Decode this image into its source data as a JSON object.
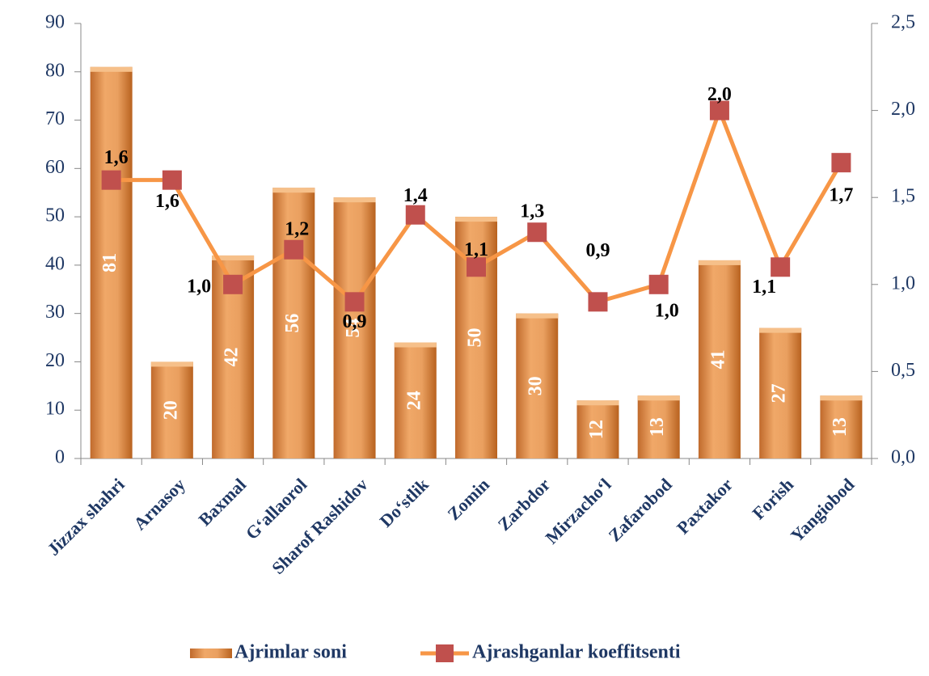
{
  "chart_data": {
    "type": "combo",
    "categories": [
      "Jizzax shahri",
      "Arnasoy",
      "Baxmal",
      "G‘allaorol",
      "Sharof Rashidov",
      "Do‘stlik",
      "Zomin",
      "Zarbdor",
      "Mirzacho‘l",
      "Zafarobod",
      "Paxtakor",
      "Forish",
      "Yangiobod"
    ],
    "series": [
      {
        "name": "Ajrimlar soni",
        "type": "bar",
        "color": "#e0904f",
        "values": [
          81,
          20,
          42,
          56,
          54,
          24,
          50,
          30,
          12,
          13,
          41,
          27,
          13
        ]
      },
      {
        "name": "Ajrashganlar koeffitsenti",
        "type": "line",
        "axis": "y2",
        "color": "#f79646",
        "marker_color": "#c0504d",
        "values": [
          1.6,
          1.6,
          1.0,
          1.2,
          0.9,
          1.4,
          1.1,
          1.3,
          0.9,
          1.0,
          2.0,
          1.1,
          1.7
        ],
        "value_labels": [
          "1,6",
          "1,6",
          "1,0",
          "1,2",
          "0,9",
          "1,4",
          "1,1",
          "1,3",
          "0,9",
          "1,0",
          "2,0",
          "1,1",
          "1,7"
        ]
      }
    ],
    "ylim": [
      0,
      90
    ],
    "yticks": [
      0,
      10,
      20,
      30,
      40,
      50,
      60,
      70,
      80,
      90
    ],
    "y2lim": [
      0,
      2.5
    ],
    "y2ticks": [
      {
        "value": 0,
        "label": "0,0"
      },
      {
        "value": 0.5,
        "label": "0,5"
      },
      {
        "value": 1.0,
        "label": "1,0"
      },
      {
        "value": 1.5,
        "label": "1,5"
      },
      {
        "value": 2.0,
        "label": "2,0"
      },
      {
        "value": 2.5,
        "label": "2,5"
      }
    ],
    "legend": "bottom"
  }
}
